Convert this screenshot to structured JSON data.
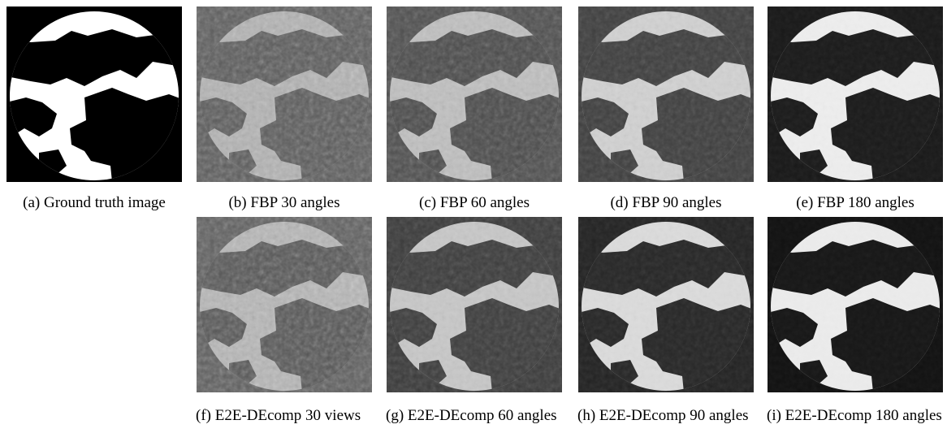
{
  "figure": {
    "panels": [
      {
        "caption": "(a) Ground truth image"
      },
      {
        "caption": "(b) FBP 30 angles"
      },
      {
        "caption": "(c) FBP 60 angles"
      },
      {
        "caption": "(d) FBP 90 angles"
      },
      {
        "caption": "(e) FBP 180 angles"
      },
      {
        "caption": "(f) E2E-DEcomp 30 views"
      },
      {
        "caption": "(g) E2E-DEcomp 60 angles"
      },
      {
        "caption": "(h) E2E-DEcomp 90 angles"
      },
      {
        "caption": "(i) E2E-DEcomp 180 angles"
      }
    ]
  }
}
